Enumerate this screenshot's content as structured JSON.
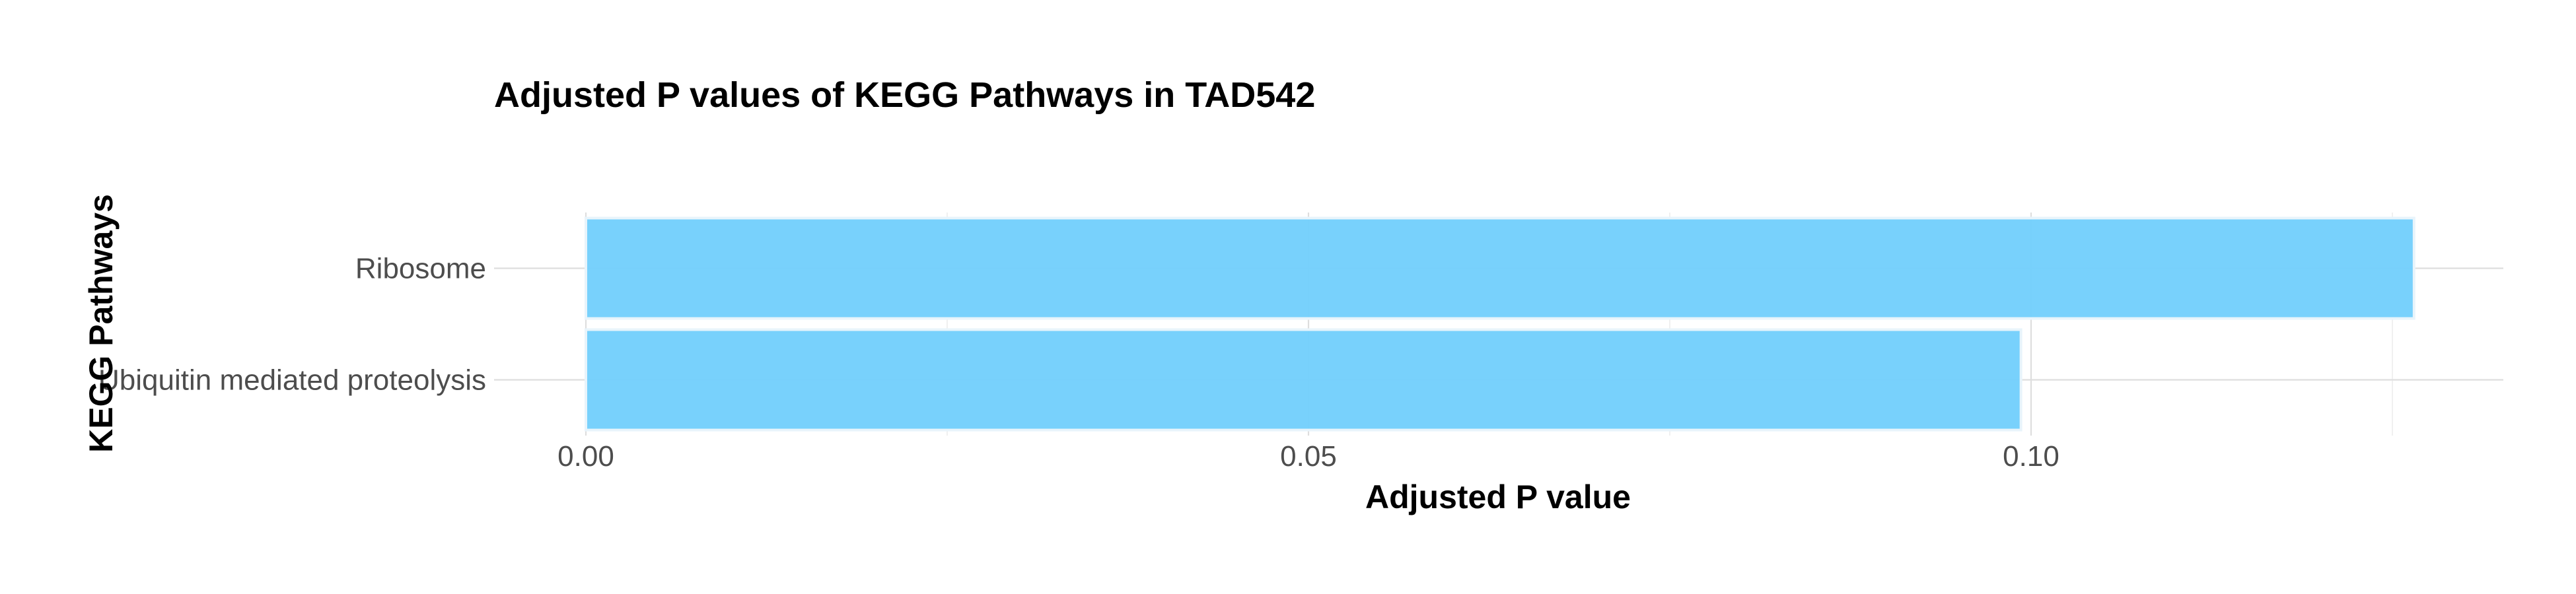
{
  "colors": {
    "bar_fill": "#74CFFC",
    "background": "#FFFFFF"
  },
  "chart_data": {
    "type": "bar",
    "orientation": "horizontal",
    "title": "Adjusted P values of KEGG Pathways in TAD542",
    "xlabel": "Adjusted P value",
    "ylabel": "KEGG Pathways",
    "categories": [
      "Ribosome",
      "Ubiquitin mediated proteolysis"
    ],
    "values": [
      0.1265,
      0.0993
    ],
    "xticks": [
      {
        "value": 0.0,
        "label": "0.00"
      },
      {
        "value": 0.05,
        "label": "0.05"
      },
      {
        "value": 0.1,
        "label": "0.10"
      }
    ],
    "xminor": [
      0.025,
      0.075,
      0.125
    ],
    "xlim": [
      0,
      0.133
    ],
    "grid": true,
    "legend": "none"
  }
}
